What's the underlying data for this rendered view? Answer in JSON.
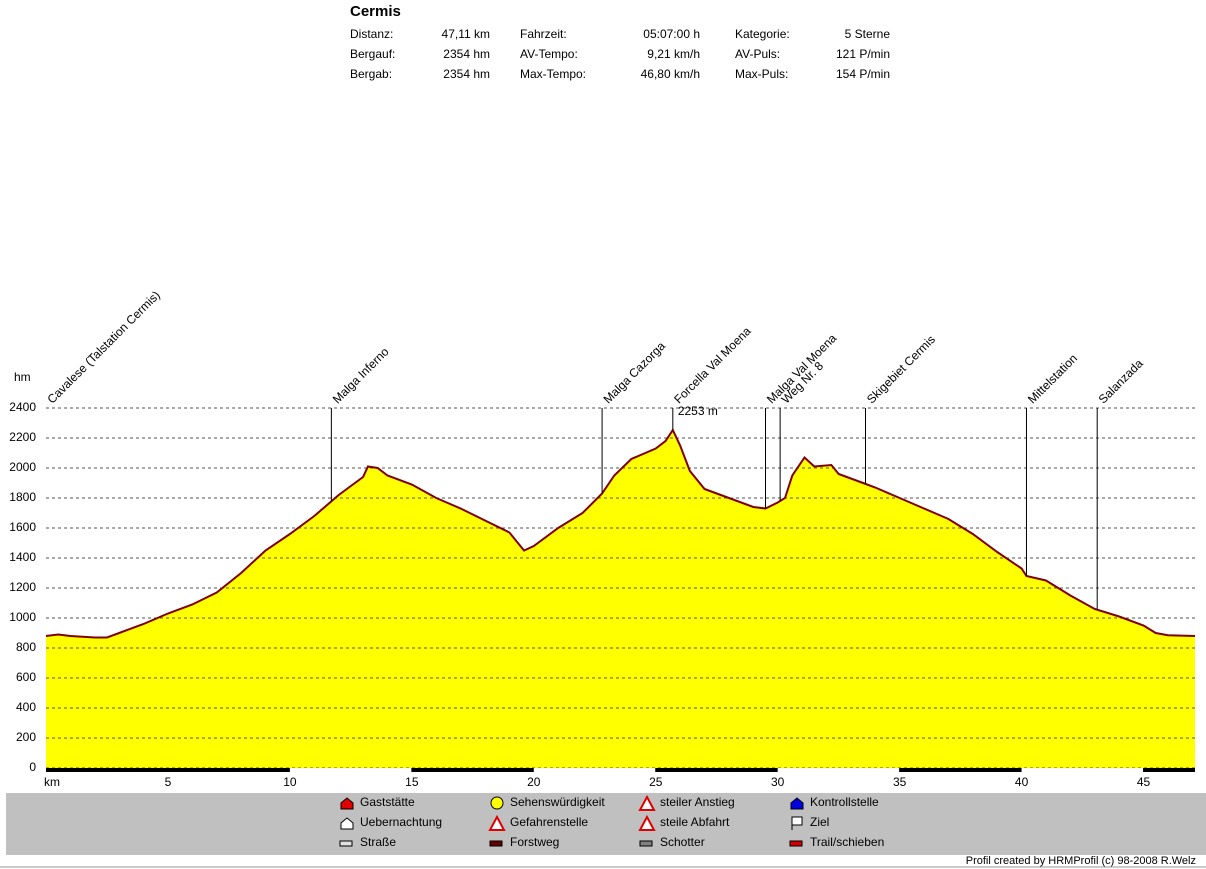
{
  "chart_data": {
    "type": "area",
    "title": "Cermis",
    "stats": [
      [
        {
          "label": "Distanz:",
          "value": "47,11 km"
        },
        {
          "label": "Bergauf:",
          "value": "2354 hm"
        },
        {
          "label": "Bergab:",
          "value": "2354 hm"
        }
      ],
      [
        {
          "label": "Fahrzeit:",
          "value": "05:07:00 h"
        },
        {
          "label": "AV-Tempo:",
          "value": "9,21 km/h"
        },
        {
          "label": "Max-Tempo:",
          "value": "46,80 km/h"
        }
      ],
      [
        {
          "label": "Kategorie:",
          "value": "5 Sterne"
        },
        {
          "label": "AV-Puls:",
          "value": "121 P/min"
        },
        {
          "label": "Max-Puls:",
          "value": "154 P/min"
        }
      ]
    ],
    "y_label": "hm",
    "x_label": "km",
    "x": [
      0,
      0.5,
      1,
      2,
      2.5,
      3,
      4,
      5,
      6,
      7,
      8,
      9,
      10,
      11,
      12,
      13,
      13.2,
      13.6,
      14,
      15,
      16,
      17,
      18,
      19,
      19.6,
      20,
      21,
      22,
      22.8,
      23.3,
      24,
      25,
      25.4,
      25.7,
      26,
      26.4,
      27,
      28,
      29,
      29.5,
      30,
      30.3,
      30.6,
      31.1,
      31.5,
      32.2,
      32.5,
      33.5,
      34,
      35,
      36,
      37,
      38,
      39,
      40,
      40.2,
      41,
      42,
      43,
      44,
      45,
      45.5,
      46,
      47.11
    ],
    "series": [
      {
        "color": "#800000",
        "fill": "#ffff00",
        "values": [
          880,
          890,
          880,
          870,
          870,
          900,
          960,
          1030,
          1090,
          1170,
          1300,
          1450,
          1560,
          1680,
          1820,
          1940,
          2010,
          2000,
          1950,
          1890,
          1800,
          1730,
          1650,
          1570,
          1450,
          1480,
          1600,
          1700,
          1830,
          1950,
          2060,
          2130,
          2180,
          2253,
          2150,
          1980,
          1860,
          1800,
          1740,
          1730,
          1770,
          1800,
          1950,
          2070,
          2010,
          2020,
          1960,
          1900,
          1870,
          1800,
          1730,
          1660,
          1560,
          1440,
          1330,
          1280,
          1250,
          1150,
          1060,
          1010,
          950,
          900,
          885,
          880
        ]
      }
    ],
    "xlim": [
      0,
      47.11
    ],
    "ylim": [
      0,
      2400
    ],
    "xticks": [
      5,
      10,
      15,
      20,
      25,
      30,
      35,
      40,
      45
    ],
    "yticks": [
      0,
      200,
      400,
      600,
      800,
      1000,
      1200,
      1400,
      1600,
      1800,
      2000,
      2200,
      2400
    ],
    "grid": true,
    "waypoints": [
      {
        "label": "Cavalese (Talstation Cermis)",
        "km": 0
      },
      {
        "label": "Malga Inferno",
        "km": 11.7
      },
      {
        "label": "Malga Cazorga",
        "km": 22.8
      },
      {
        "label": "Forcella Val Moena",
        "km": 25.7
      },
      {
        "label": "Malga Val Moena",
        "km": 29.5
      },
      {
        "label": "Weg Nr. 8",
        "km": 30.1
      },
      {
        "label": "Skigebiet Cermis",
        "km": 33.6
      },
      {
        "label": "Mittelstation",
        "km": 40.2
      },
      {
        "label": "Salanzada",
        "km": 43.1
      }
    ],
    "annotations": [
      {
        "x": 25.7,
        "y": 2253,
        "label": "2253 m",
        "color": "#c00000"
      }
    ],
    "legend": [
      "Gaststätte",
      "Uebernachtung",
      "Straße",
      "Sehenswürdigkeit",
      "Gefahrenstelle",
      "Forstweg",
      "steiler Anstieg",
      "steile Abfahrt",
      "Schotter",
      "Kontrollstelle",
      "Ziel",
      "Trail/schieben"
    ],
    "footer": "Profil created by HRMProfil (c) 98-2008 R.Welz"
  }
}
